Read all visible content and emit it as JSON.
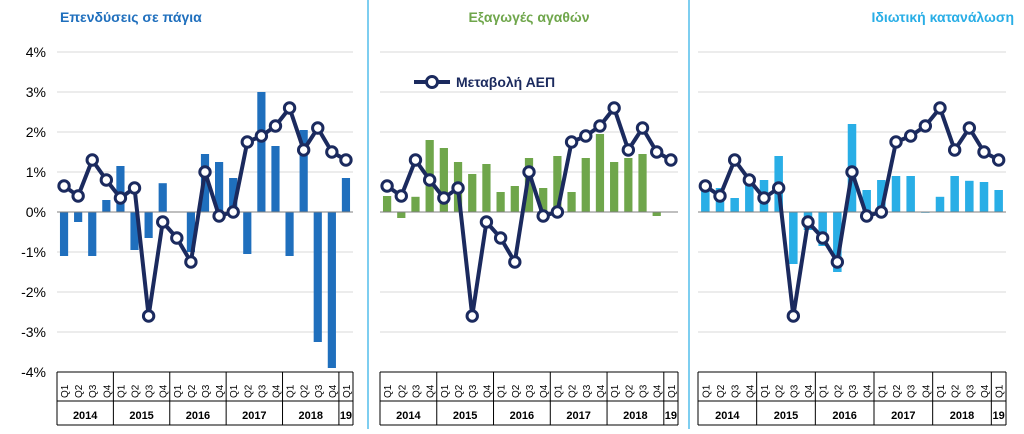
{
  "chart_data": [
    {
      "type": "bar",
      "title": "Επενδύσεις σε πάγια",
      "title_color": "#1f6fbd",
      "bar_color": "#1f6fbd",
      "ylim": [
        -0.04,
        0.04
      ],
      "yticks": [
        "4%",
        "3%",
        "2%",
        "1%",
        "0%",
        "-1%",
        "-2%",
        "-3%",
        "-4%"
      ],
      "grid": true,
      "categories": [
        "Q1",
        "Q2",
        "Q3",
        "Q4",
        "Q1",
        "Q2",
        "Q3",
        "Q4",
        "Q1",
        "Q2",
        "Q3",
        "Q4",
        "Q1",
        "Q2",
        "Q3",
        "Q4",
        "Q1",
        "Q2",
        "Q3",
        "Q4",
        "Q1"
      ],
      "year_labels": [
        "2014",
        "2015",
        "2016",
        "2017",
        "2018",
        "19"
      ],
      "series": [
        {
          "values": [
            -1.1,
            -0.25,
            -1.1,
            0.3,
            1.15,
            -0.95,
            -0.65,
            0.72,
            0.0,
            -1.0,
            1.45,
            1.25,
            0.85,
            -1.05,
            3.0,
            1.65,
            -1.1,
            2.05,
            -3.25,
            -3.9,
            0.85
          ]
        }
      ]
    },
    {
      "type": "bar",
      "title": "Εξαγωγές αγαθών",
      "title_color": "#6fa64b",
      "bar_color": "#6fa64b",
      "ylim": [
        -0.04,
        0.04
      ],
      "grid": true,
      "categories": [
        "Q1",
        "Q2",
        "Q3",
        "Q4",
        "Q1",
        "Q2",
        "Q3",
        "Q4",
        "Q1",
        "Q2",
        "Q3",
        "Q4",
        "Q1",
        "Q2",
        "Q3",
        "Q4",
        "Q1",
        "Q2",
        "Q3",
        "Q4",
        "Q1"
      ],
      "year_labels": [
        "2014",
        "2015",
        "2016",
        "2017",
        "2018",
        "19"
      ],
      "series": [
        {
          "values": [
            0.4,
            -0.15,
            0.38,
            1.8,
            1.6,
            1.25,
            0.95,
            1.2,
            0.5,
            0.65,
            1.35,
            0.6,
            1.4,
            0.5,
            1.35,
            1.95,
            1.25,
            1.35,
            1.45,
            -0.1,
            0.0
          ]
        }
      ]
    },
    {
      "type": "bar",
      "title": "Ιδιωτική κατανάλωση",
      "title_color": "#29aee6",
      "bar_color": "#29aee6",
      "ylim": [
        -0.04,
        0.04
      ],
      "grid": true,
      "categories": [
        "Q1",
        "Q2",
        "Q3",
        "Q4",
        "Q1",
        "Q2",
        "Q3",
        "Q4",
        "Q1",
        "Q2",
        "Q3",
        "Q4",
        "Q1",
        "Q2",
        "Q3",
        "Q4",
        "Q1",
        "Q2",
        "Q3",
        "Q4",
        "Q1"
      ],
      "year_labels": [
        "2014",
        "2015",
        "2016",
        "2017",
        "2018",
        "19"
      ],
      "series": [
        {
          "values": [
            0.55,
            0.6,
            0.35,
            0.8,
            0.8,
            1.4,
            -1.3,
            -0.45,
            -0.85,
            -1.5,
            2.2,
            0.55,
            0.8,
            0.9,
            0.9,
            -0.02,
            0.38,
            0.9,
            0.78,
            0.75,
            0.55
          ]
        }
      ]
    }
  ],
  "gdp_series": {
    "name": "Μεταβολή ΑΕΠ",
    "color": "#1b2a5e",
    "values": [
      0.65,
      0.4,
      1.3,
      0.8,
      0.35,
      0.6,
      -2.6,
      -0.25,
      -0.65,
      -1.25,
      1.0,
      -0.1,
      0.0,
      1.75,
      1.9,
      2.15,
      2.6,
      1.55,
      2.1,
      1.5,
      1.3
    ]
  },
  "divider_color": "#29aee6"
}
